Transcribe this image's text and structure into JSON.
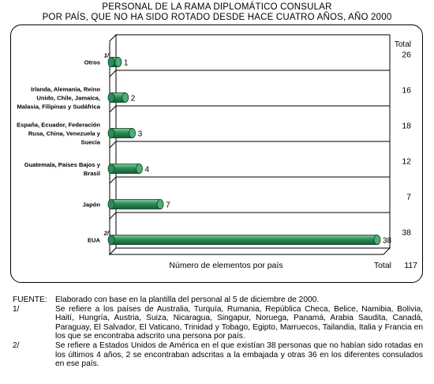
{
  "title_line1": "PERSONAL DE LA RAMA DIPLOMÁTICO CONSULAR",
  "title_line2": "POR PAÍS, QUE NO HA SIDO ROTADO DESDE HACE CUATRO AÑOS, AÑO 2000",
  "chart_data": {
    "type": "bar",
    "orientation": "horizontal",
    "categories": [
      "Otros",
      "Irlanda, Alemania, Reino Unido, Chile, Jamaica, Malasia, Filipinas y Sudáfrica",
      "España, Ecuador, Federación Rusa, China, Venezuela y Suecia",
      "Guatemala, Países Bajos y Brasil",
      "Japón",
      "EUA"
    ],
    "category_lines": [
      [
        "Otros"
      ],
      [
        "Irlanda, Alemania, Reino",
        "Unido, Chile, Jamaica,",
        "Malasia, Filipinas y Sudáfrica"
      ],
      [
        "España, Ecuador, Federación",
        "Rusa, China, Venezuela y",
        "Suecia"
      ],
      [
        "Guatemala, Países Bajos y",
        "Brasil"
      ],
      [
        "Japón"
      ],
      [
        "EUA"
      ]
    ],
    "category_notes": [
      "1/",
      "",
      "",
      "",
      "",
      "2/"
    ],
    "values": [
      1,
      2,
      3,
      4,
      7,
      38
    ],
    "data_labels": [
      "1",
      "2",
      "3",
      "4",
      "7",
      "38"
    ],
    "totals_header": "Total",
    "totals": [
      "26",
      "16",
      "18",
      "12",
      "7",
      "38"
    ],
    "grand_total_label": "Total",
    "grand_total": "117",
    "xlabel": "Número de elementos por país",
    "ylabel": "",
    "xlim": [
      0,
      38
    ],
    "grid": true,
    "bar_color": "#2e8b57"
  },
  "notes": [
    {
      "key": "FUENTE:",
      "text": "Elaborado con base en la plantilla del personal al 5 de diciembre de 2000."
    },
    {
      "key": "1/",
      "text": "Se refiere a los países de Australia, Turquía, Rumania, República Checa, Belice, Namibia, Bolivia, Haití, Hungría, Austria, Suiza, Nicaragua, Singapur, Noruega, Panamá, Arabia Saudita, Canadá, Paraguay, El Salvador, El Vaticano, Trinidad y Tobago, Egipto, Marruecos, Tailandia, Italia y Francia en los que se encontraba adscrito una persona por país."
    },
    {
      "key": "2/",
      "text": "Se refiere a Estados Unidos de América en el que existían 38 personas que no habían sido rotadas en los últimos 4 años, 2 se encontraban adscritas a la embajada  y otras 36 en los diferentes consulados en ese país."
    }
  ]
}
